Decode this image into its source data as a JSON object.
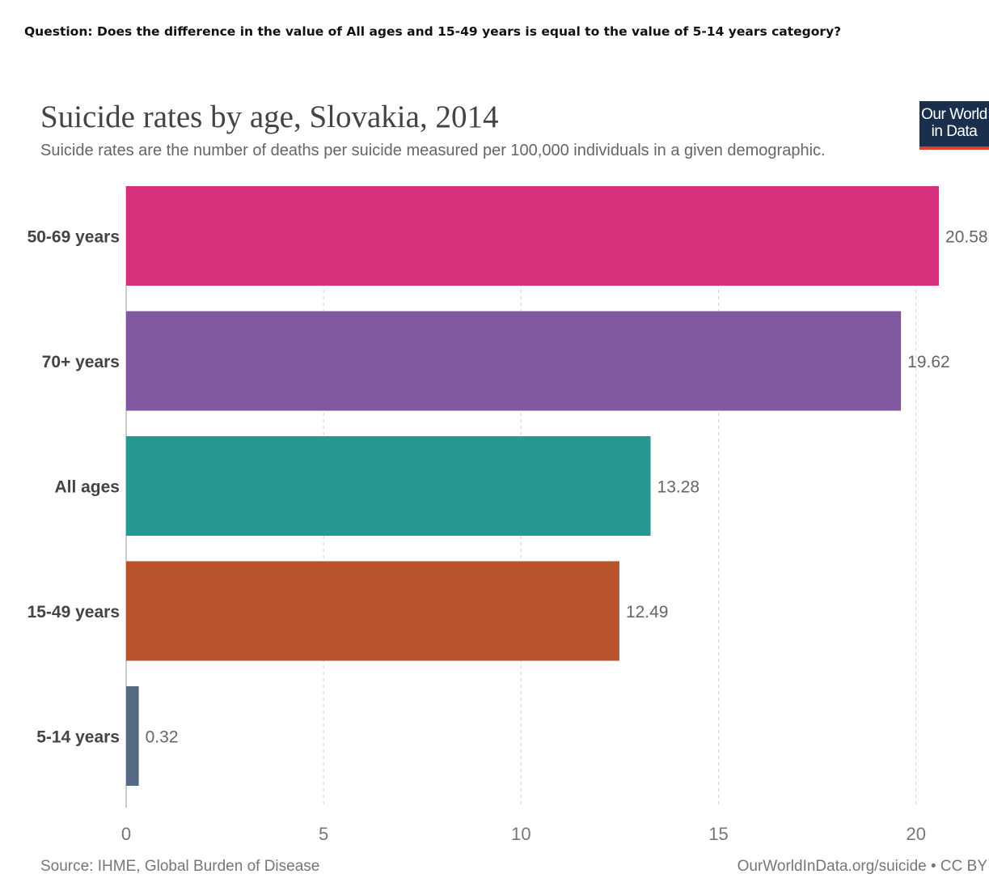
{
  "question": "Question: Does the difference in the value of All ages and 15-49 years is equal to the value of 5-14 years category?",
  "logo": {
    "line1": "Our World",
    "line2": "in Data"
  },
  "footer": {
    "source": "Source: IHME, Global Burden of Disease",
    "credit": "OurWorldInData.org/suicide • CC BY"
  },
  "chart_data": {
    "type": "bar",
    "orientation": "horizontal",
    "title": "Suicide rates by age, Slovakia, 2014",
    "subtitle": "Suicide rates are the number of deaths per suicide measured per 100,000 individuals in a given demographic.",
    "categories": [
      "50-69 years",
      "70+ years",
      "All ages",
      "15-49 years",
      "5-14 years"
    ],
    "values": [
      20.58,
      19.62,
      13.28,
      12.49,
      0.32
    ],
    "value_labels": [
      "20.58",
      "19.62",
      "13.28",
      "12.49",
      "0.32"
    ],
    "colors": [
      "#d6317a",
      "#8058a0",
      "#259891",
      "#b9532b",
      "#566983"
    ],
    "xlim": [
      0,
      20.6
    ],
    "xticks": [
      0,
      5,
      10,
      15,
      20
    ],
    "grid": "vertical dashed",
    "xlabel": "",
    "ylabel": ""
  }
}
